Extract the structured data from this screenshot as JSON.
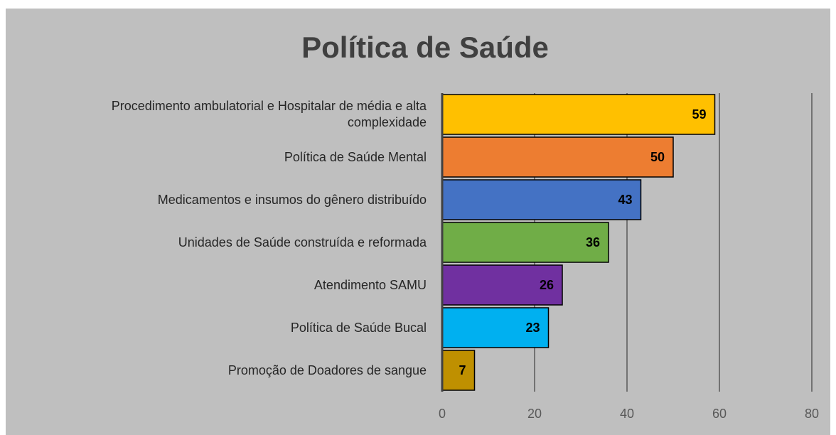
{
  "chart_data": {
    "type": "bar",
    "orientation": "horizontal",
    "title": "Política de Saúde",
    "categories": [
      "Procedimento ambulatorial e Hospitalar de média e alta complexidade",
      "Política de Saúde Mental",
      "Medicamentos e insumos do gênero distribuído",
      "Unidades de Saúde construída e reformada",
      "Atendimento SAMU",
      "Política de Saúde Bucal",
      "Promoção de Doadores de sangue"
    ],
    "values": [
      59,
      50,
      43,
      36,
      26,
      23,
      7
    ],
    "colors": [
      "#ffc000",
      "#ed7d31",
      "#4472c4",
      "#70ad47",
      "#7030a0",
      "#00b0f0",
      "#bf9000"
    ],
    "xlim": [
      0,
      80
    ],
    "xticks": [
      0,
      20,
      40,
      60,
      80
    ],
    "grid": true
  }
}
